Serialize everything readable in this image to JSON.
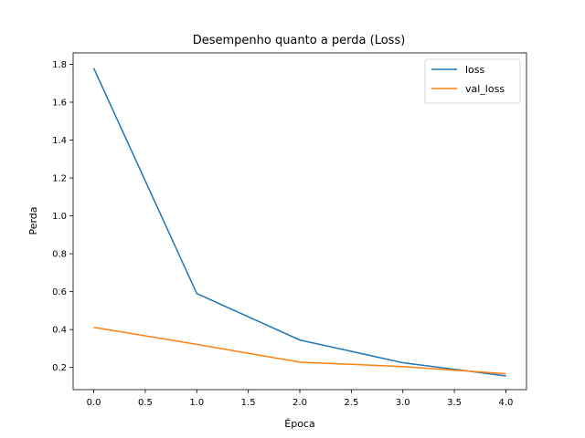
{
  "chart_data": {
    "type": "line",
    "title": "Desempenho quanto a perda (Loss)",
    "xlabel": "Época",
    "ylabel": "Perda",
    "x": [
      0,
      1,
      2,
      3,
      4
    ],
    "xlim": [
      -0.2,
      4.2
    ],
    "ylim": [
      0.083,
      1.86
    ],
    "xticks": [
      0.0,
      0.5,
      1.0,
      1.5,
      2.0,
      2.5,
      3.0,
      3.5,
      4.0
    ],
    "xtick_labels": [
      "0.0",
      "0.5",
      "1.0",
      "1.5",
      "2.0",
      "2.5",
      "3.0",
      "3.5",
      "4.0"
    ],
    "yticks": [
      0.2,
      0.4,
      0.6,
      0.8,
      1.0,
      1.2,
      1.4,
      1.6,
      1.8
    ],
    "ytick_labels": [
      "0.2",
      "0.4",
      "0.6",
      "0.8",
      "1.0",
      "1.2",
      "1.4",
      "1.6",
      "1.8"
    ],
    "grid": false,
    "legend_position": "top-right",
    "series": [
      {
        "name": "loss",
        "color": "#1f77b4",
        "values": [
          1.78,
          0.59,
          0.345,
          0.225,
          0.155
        ]
      },
      {
        "name": "val_loss",
        "color": "#ff7f0e",
        "values": [
          0.412,
          0.322,
          0.228,
          0.205,
          0.167
        ]
      }
    ]
  }
}
